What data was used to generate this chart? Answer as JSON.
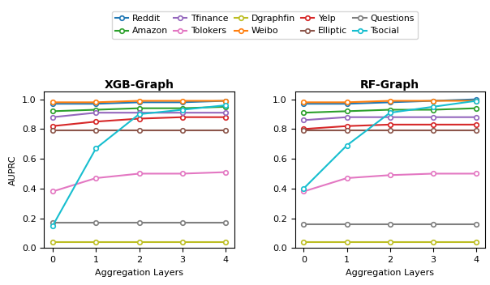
{
  "x": [
    0,
    1,
    2,
    3,
    4
  ],
  "datasets": {
    "Reddit": {
      "color": "#1f77b4",
      "xgb": [
        0.97,
        0.97,
        0.98,
        0.98,
        0.99
      ],
      "rf": [
        0.97,
        0.97,
        0.98,
        0.99,
        1.0
      ]
    },
    "Weibo": {
      "color": "#ff7f0e",
      "xgb": [
        0.98,
        0.98,
        0.99,
        0.99,
        0.99
      ],
      "rf": [
        0.98,
        0.98,
        0.99,
        0.99,
        0.99
      ]
    },
    "Amazon": {
      "color": "#2ca02c",
      "xgb": [
        0.92,
        0.93,
        0.94,
        0.94,
        0.95
      ],
      "rf": [
        0.91,
        0.92,
        0.93,
        0.93,
        0.94
      ]
    },
    "Yelp": {
      "color": "#d62728",
      "xgb": [
        0.82,
        0.85,
        0.87,
        0.88,
        0.88
      ],
      "rf": [
        0.8,
        0.82,
        0.83,
        0.83,
        0.83
      ]
    },
    "Tfinance": {
      "color": "#9467bd",
      "xgb": [
        0.88,
        0.91,
        0.91,
        0.91,
        0.91
      ],
      "rf": [
        0.86,
        0.88,
        0.88,
        0.88,
        0.88
      ]
    },
    "Elliptic": {
      "color": "#8c564b",
      "xgb": [
        0.79,
        0.79,
        0.79,
        0.79,
        0.79
      ],
      "rf": [
        0.79,
        0.79,
        0.79,
        0.79,
        0.79
      ]
    },
    "Tolokers": {
      "color": "#e377c2",
      "xgb": [
        0.38,
        0.47,
        0.5,
        0.5,
        0.51
      ],
      "rf": [
        0.38,
        0.47,
        0.49,
        0.5,
        0.5
      ]
    },
    "Questions": {
      "color": "#7f7f7f",
      "xgb": [
        0.17,
        0.17,
        0.17,
        0.17,
        0.17
      ],
      "rf": [
        0.16,
        0.16,
        0.16,
        0.16,
        0.16
      ]
    },
    "Dgraphfin": {
      "color": "#bcbd22",
      "xgb": [
        0.04,
        0.04,
        0.04,
        0.04,
        0.04
      ],
      "rf": [
        0.04,
        0.04,
        0.04,
        0.04,
        0.04
      ]
    },
    "Tsocial": {
      "color": "#17becf",
      "xgb": [
        0.15,
        0.67,
        0.9,
        0.93,
        0.96
      ],
      "rf": [
        0.4,
        0.69,
        0.91,
        0.95,
        0.99
      ]
    }
  },
  "legend_order": [
    "Reddit",
    "Amazon",
    "Tfinance",
    "Tolokers",
    "Dgraphfin",
    "Weibo",
    "Yelp",
    "Elliptic",
    "Questions",
    "Tsocial"
  ],
  "xgb_title": "XGB-Graph",
  "rf_title": "RF-Graph",
  "xlabel": "Aggregation Layers",
  "ylabel": "AUPRC",
  "ylim": [
    0.0,
    1.05
  ],
  "xlim": [
    -0.2,
    4.2
  ],
  "figsize": [
    6.04,
    3.52
  ],
  "dpi": 100
}
